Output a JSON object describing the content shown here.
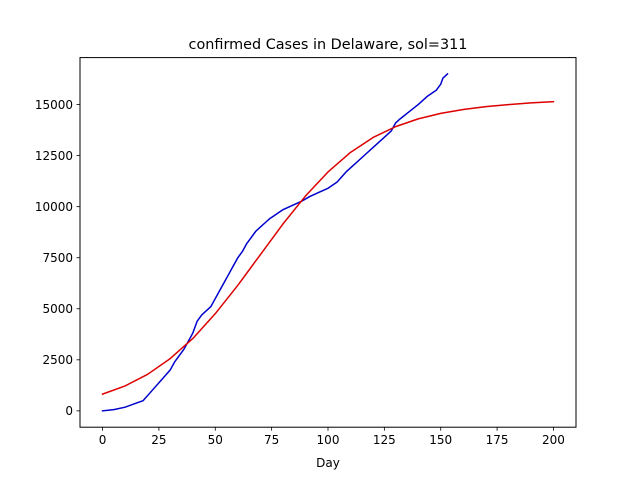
{
  "chart_data": {
    "type": "line",
    "title": "confirmed Cases in Delaware, sol=311",
    "xlabel": "Day",
    "ylabel": "",
    "xlim": [
      -10,
      210
    ],
    "ylim": [
      -800,
      17300
    ],
    "xticks": [
      0,
      25,
      50,
      75,
      100,
      125,
      150,
      175,
      200
    ],
    "yticks": [
      0,
      2500,
      5000,
      7500,
      10000,
      12500,
      15000
    ],
    "grid": false,
    "legend": "none",
    "series": [
      {
        "color": "#0000cc",
        "x": [
          0,
          5,
          10,
          15,
          18,
          22,
          26,
          30,
          32,
          34,
          36,
          38,
          40,
          42,
          44,
          46,
          48,
          50,
          52,
          54,
          56,
          58,
          60,
          62,
          64,
          66,
          68,
          70,
          72,
          74,
          76,
          78,
          80,
          82,
          85,
          88,
          92,
          96,
          100,
          104,
          108,
          112,
          116,
          120,
          124,
          128,
          130,
          132,
          136,
          140,
          144,
          148,
          150,
          151,
          153
        ],
        "y": [
          0,
          60,
          180,
          380,
          500,
          1000,
          1500,
          2000,
          2400,
          2700,
          3000,
          3400,
          3800,
          4400,
          4700,
          4900,
          5100,
          5500,
          5900,
          6300,
          6700,
          7100,
          7500,
          7800,
          8200,
          8500,
          8800,
          9000,
          9200,
          9400,
          9550,
          9700,
          9850,
          9950,
          10100,
          10250,
          10500,
          10700,
          10900,
          11200,
          11700,
          12100,
          12500,
          12900,
          13300,
          13700,
          14100,
          14300,
          14650,
          15000,
          15400,
          15700,
          16000,
          16300,
          16500
        ]
      },
      {
        "color": "#dd0000",
        "x": [
          0,
          10,
          20,
          30,
          40,
          50,
          60,
          70,
          80,
          90,
          100,
          110,
          120,
          130,
          140,
          150,
          160,
          170,
          180,
          190,
          200
        ],
        "y": [
          820,
          1220,
          1790,
          2560,
          3540,
          4760,
          6150,
          7650,
          9150,
          10520,
          11700,
          12660,
          13390,
          13920,
          14300,
          14570,
          14760,
          14900,
          15000,
          15080,
          15140
        ]
      }
    ]
  }
}
